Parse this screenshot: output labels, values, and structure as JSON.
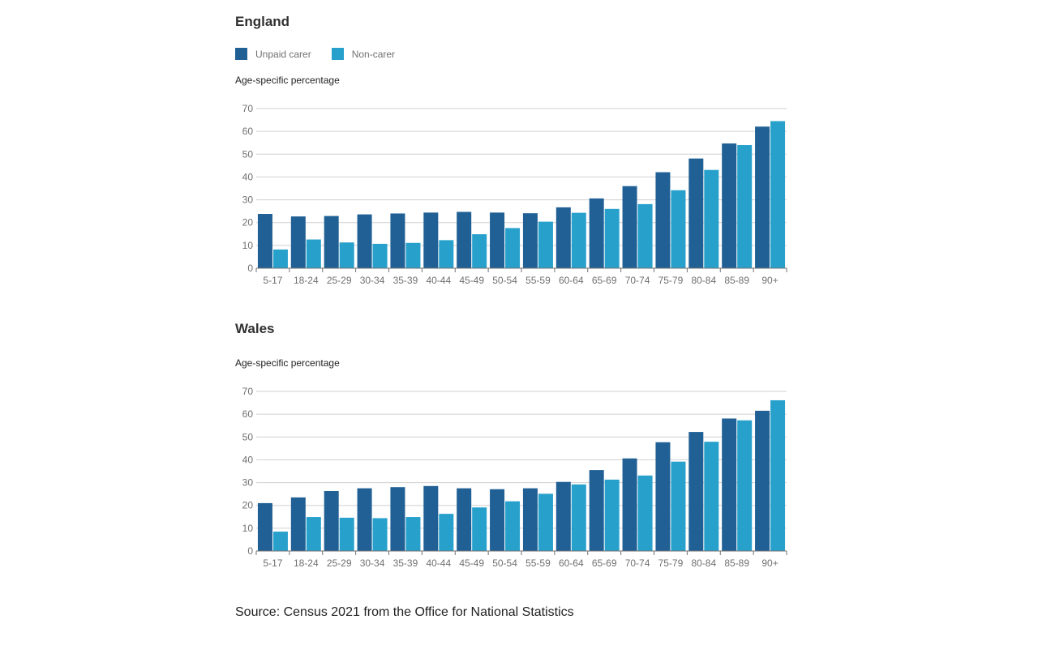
{
  "legend": {
    "series1": "Unpaid carer",
    "series2": "Non-carer",
    "color1": "#206095",
    "color2": "#27a0cc"
  },
  "source": "Source: Census 2021 from the Office for National Statistics",
  "chart_data": [
    {
      "type": "bar",
      "title": "England",
      "ylabel": "Age-specific percentage",
      "xlabel": "",
      "ylim": [
        0,
        70
      ],
      "yticks": [
        0,
        10,
        20,
        30,
        40,
        50,
        60,
        70
      ],
      "grid": true,
      "legend": "top-left",
      "categories": [
        "5-17",
        "18-24",
        "25-29",
        "30-34",
        "35-39",
        "40-44",
        "45-49",
        "50-54",
        "55-59",
        "60-64",
        "65-69",
        "70-74",
        "75-79",
        "80-84",
        "85-89",
        "90+"
      ],
      "series": [
        {
          "name": "Unpaid carer",
          "color": "#206095",
          "values": [
            23.8,
            22.7,
            22.9,
            23.6,
            24.0,
            24.4,
            24.7,
            24.4,
            24.1,
            26.7,
            30.6,
            36.0,
            42.1,
            48.1,
            54.7,
            62.1
          ]
        },
        {
          "name": "Non-carer",
          "color": "#27a0cc",
          "values": [
            8.2,
            12.6,
            11.3,
            10.7,
            11.1,
            12.3,
            14.9,
            17.6,
            20.4,
            24.3,
            26.0,
            28.1,
            34.2,
            43.1,
            54.0,
            64.5
          ]
        }
      ]
    },
    {
      "type": "bar",
      "title": "Wales",
      "ylabel": "Age-specific percentage",
      "xlabel": "",
      "ylim": [
        0,
        70
      ],
      "yticks": [
        0,
        10,
        20,
        30,
        40,
        50,
        60,
        70
      ],
      "grid": true,
      "categories": [
        "5-17",
        "18-24",
        "25-29",
        "30-34",
        "35-39",
        "40-44",
        "45-49",
        "50-54",
        "55-59",
        "60-64",
        "65-69",
        "70-74",
        "75-79",
        "80-84",
        "85-89",
        "90+"
      ],
      "series": [
        {
          "name": "Unpaid carer",
          "color": "#206095",
          "values": [
            21.0,
            23.5,
            26.3,
            27.5,
            28.0,
            28.5,
            27.5,
            27.1,
            27.5,
            30.3,
            35.5,
            40.6,
            47.7,
            52.2,
            58.1,
            61.5
          ]
        },
        {
          "name": "Non-carer",
          "color": "#27a0cc",
          "values": [
            8.5,
            14.9,
            14.6,
            14.4,
            14.9,
            16.3,
            19.1,
            21.8,
            25.1,
            29.2,
            31.3,
            33.1,
            39.2,
            47.9,
            57.3,
            66.1
          ]
        }
      ]
    }
  ]
}
